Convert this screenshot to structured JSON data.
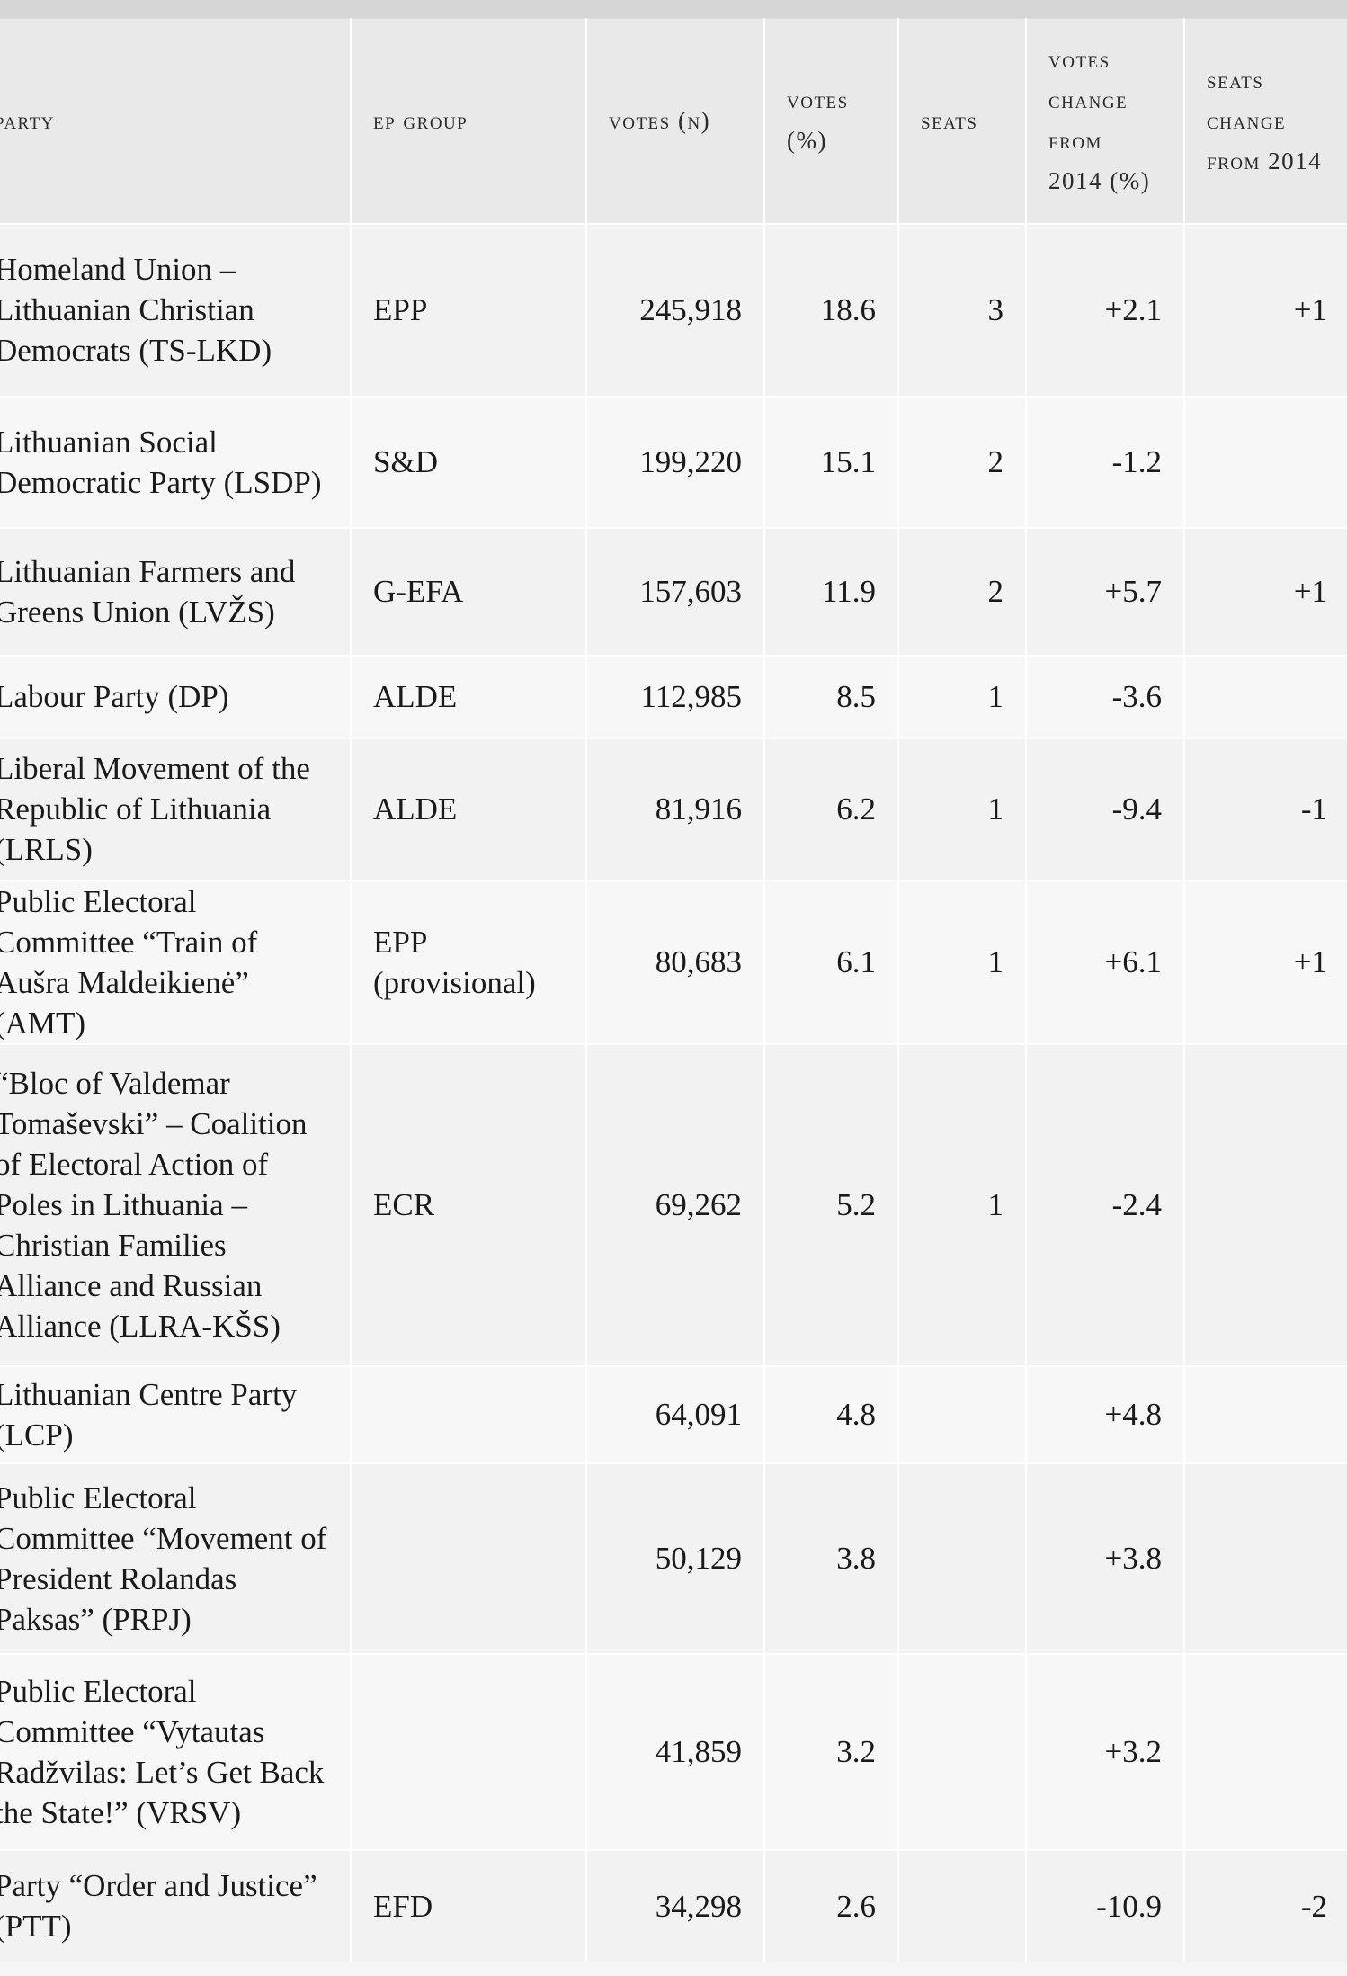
{
  "table": {
    "headers": [
      "Party",
      "EP Group",
      "Votes (N)",
      "Votes (%)",
      "Seats",
      "Votes change from 2014 (%)",
      "Seats change from 2014"
    ],
    "rows": [
      {
        "party": "Homeland Union – Lithuanian Christian Democrats (TS-LKD)",
        "ep_group": "EPP",
        "votes_n": "245,918",
        "votes_pct": "18.6",
        "seats": "3",
        "votes_change": "+2.1",
        "seats_change": "+1"
      },
      {
        "party": "Lithuanian Social Democratic Party (LSDP)",
        "ep_group": "S&D",
        "votes_n": "199,220",
        "votes_pct": "15.1",
        "seats": "2",
        "votes_change": "-1.2",
        "seats_change": ""
      },
      {
        "party": "Lithuanian Farmers and Greens Union (LVŽS)",
        "ep_group": "G-EFA",
        "votes_n": "157,603",
        "votes_pct": "11.9",
        "seats": "2",
        "votes_change": "+5.7",
        "seats_change": "+1"
      },
      {
        "party": "Labour Party (DP)",
        "ep_group": "ALDE",
        "votes_n": "112,985",
        "votes_pct": "8.5",
        "seats": "1",
        "votes_change": "-3.6",
        "seats_change": ""
      },
      {
        "party": "Liberal Movement of the Republic of Lithuania (LRLS)",
        "ep_group": "ALDE",
        "votes_n": "81,916",
        "votes_pct": "6.2",
        "seats": "1",
        "votes_change": "-9.4",
        "seats_change": "-1"
      },
      {
        "party": "Public Electoral Committee “Train of Aušra Maldeikienė” (AMT)",
        "ep_group": "EPP (provisional)",
        "votes_n": "80,683",
        "votes_pct": "6.1",
        "seats": "1",
        "votes_change": "+6.1",
        "seats_change": "+1"
      },
      {
        "party": "“Bloc of Valdemar Tomaševski” – Coalition of Electoral Action of Poles in Lithuania – Christian Families Alliance and Russian Alliance (LLRA-KŠS)",
        "ep_group": "ECR",
        "votes_n": "69,262",
        "votes_pct": "5.2",
        "seats": "1",
        "votes_change": "-2.4",
        "seats_change": ""
      },
      {
        "party": "Lithuanian Centre Party (LCP)",
        "ep_group": "",
        "votes_n": "64,091",
        "votes_pct": "4.8",
        "seats": "",
        "votes_change": "+4.8",
        "seats_change": ""
      },
      {
        "party": "Public Electoral Committee “Movement of President Rolandas Paksas” (PRPJ)",
        "ep_group": "",
        "votes_n": "50,129",
        "votes_pct": "3.8",
        "seats": "",
        "votes_change": "+3.8",
        "seats_change": ""
      },
      {
        "party": "Public Electoral Committee “Vytautas Radžvilas: Let’s Get Back the State!” (VRSV)",
        "ep_group": "",
        "votes_n": "41,859",
        "votes_pct": "3.2",
        "seats": "",
        "votes_change": "+3.2",
        "seats_change": ""
      },
      {
        "party": "Party “Order and Justice” (PTT)",
        "ep_group": "EFD",
        "votes_n": "34,298",
        "votes_pct": "2.6",
        "seats": "",
        "votes_change": "-10.9",
        "seats_change": "-2"
      }
    ]
  }
}
